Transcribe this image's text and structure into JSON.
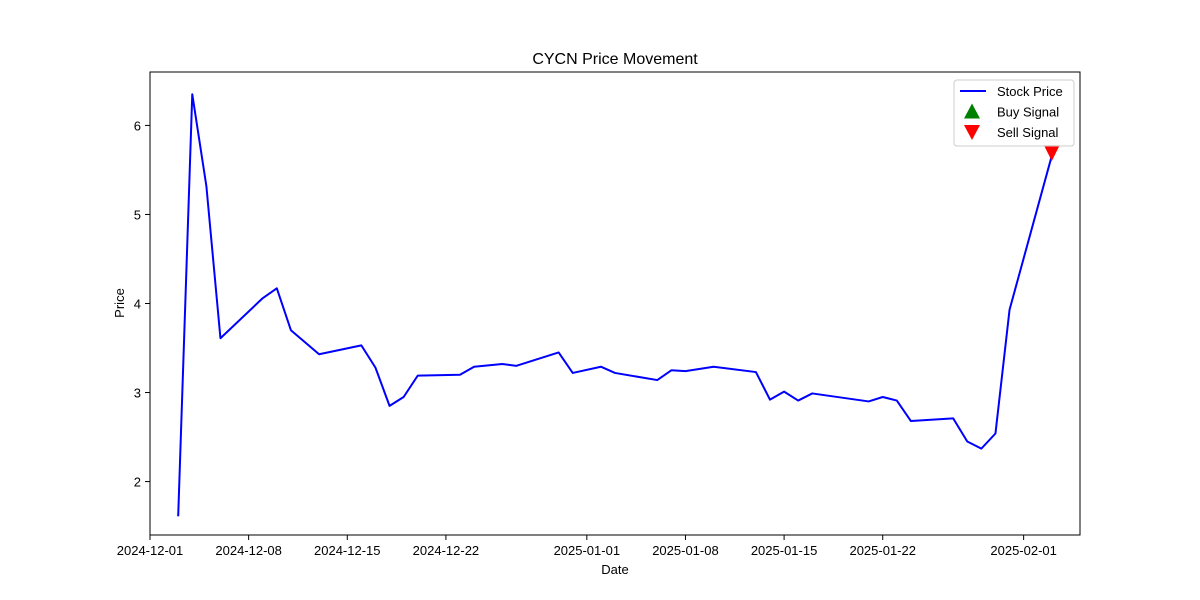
{
  "chart_data": {
    "type": "line",
    "title": "CYCN Price Movement",
    "xlabel": "Date",
    "ylabel": "Price",
    "xlim": [
      "2024-12-01",
      "2025-02-05"
    ],
    "ylim": [
      1.4,
      6.6
    ],
    "x_ticks": [
      "2024-12-01",
      "2024-12-08",
      "2024-12-15",
      "2024-12-22",
      "2025-01-01",
      "2025-01-08",
      "2025-01-15",
      "2025-01-22",
      "2025-02-01"
    ],
    "y_ticks": [
      2,
      3,
      4,
      5,
      6
    ],
    "grid": false,
    "legend_position": "top-right",
    "legend": [
      {
        "label": "Stock Price",
        "color": "#0000ff",
        "marker": "line"
      },
      {
        "label": "Buy Signal",
        "color": "#008000",
        "marker": "triangle-up"
      },
      {
        "label": "Sell Signal",
        "color": "#ff0000",
        "marker": "triangle-down"
      }
    ],
    "series": [
      {
        "name": "Stock Price",
        "color": "#0000ff",
        "points": [
          [
            "2024-12-03",
            1.61
          ],
          [
            "2024-12-04",
            6.35
          ],
          [
            "2024-12-05",
            5.32
          ],
          [
            "2024-12-06",
            3.61
          ],
          [
            "2024-12-09",
            4.06
          ],
          [
            "2024-12-10",
            4.17
          ],
          [
            "2024-12-11",
            3.7
          ],
          [
            "2024-12-13",
            3.43
          ],
          [
            "2024-12-16",
            3.53
          ],
          [
            "2024-12-17",
            3.28
          ],
          [
            "2024-12-18",
            2.85
          ],
          [
            "2024-12-19",
            2.95
          ],
          [
            "2024-12-20",
            3.19
          ],
          [
            "2024-12-23",
            3.2
          ],
          [
            "2024-12-24",
            3.29
          ],
          [
            "2024-12-26",
            3.32
          ],
          [
            "2024-12-27",
            3.3
          ],
          [
            "2024-12-30",
            3.45
          ],
          [
            "2024-12-31",
            3.22
          ],
          [
            "2025-01-02",
            3.29
          ],
          [
            "2025-01-03",
            3.22
          ],
          [
            "2025-01-06",
            3.14
          ],
          [
            "2025-01-07",
            3.25
          ],
          [
            "2025-01-08",
            3.24
          ],
          [
            "2025-01-10",
            3.29
          ],
          [
            "2025-01-13",
            3.23
          ],
          [
            "2025-01-14",
            2.92
          ],
          [
            "2025-01-15",
            3.01
          ],
          [
            "2025-01-16",
            2.91
          ],
          [
            "2025-01-17",
            2.99
          ],
          [
            "2025-01-21",
            2.9
          ],
          [
            "2025-01-22",
            2.95
          ],
          [
            "2025-01-23",
            2.91
          ],
          [
            "2025-01-24",
            2.68
          ],
          [
            "2025-01-27",
            2.71
          ],
          [
            "2025-01-28",
            2.45
          ],
          [
            "2025-01-29",
            2.37
          ],
          [
            "2025-01-30",
            2.54
          ],
          [
            "2025-01-31",
            3.93
          ],
          [
            "2025-02-03",
            5.66
          ]
        ]
      }
    ],
    "buy_signals": [],
    "sell_signals": [
      [
        "2025-02-03",
        5.69
      ]
    ]
  }
}
